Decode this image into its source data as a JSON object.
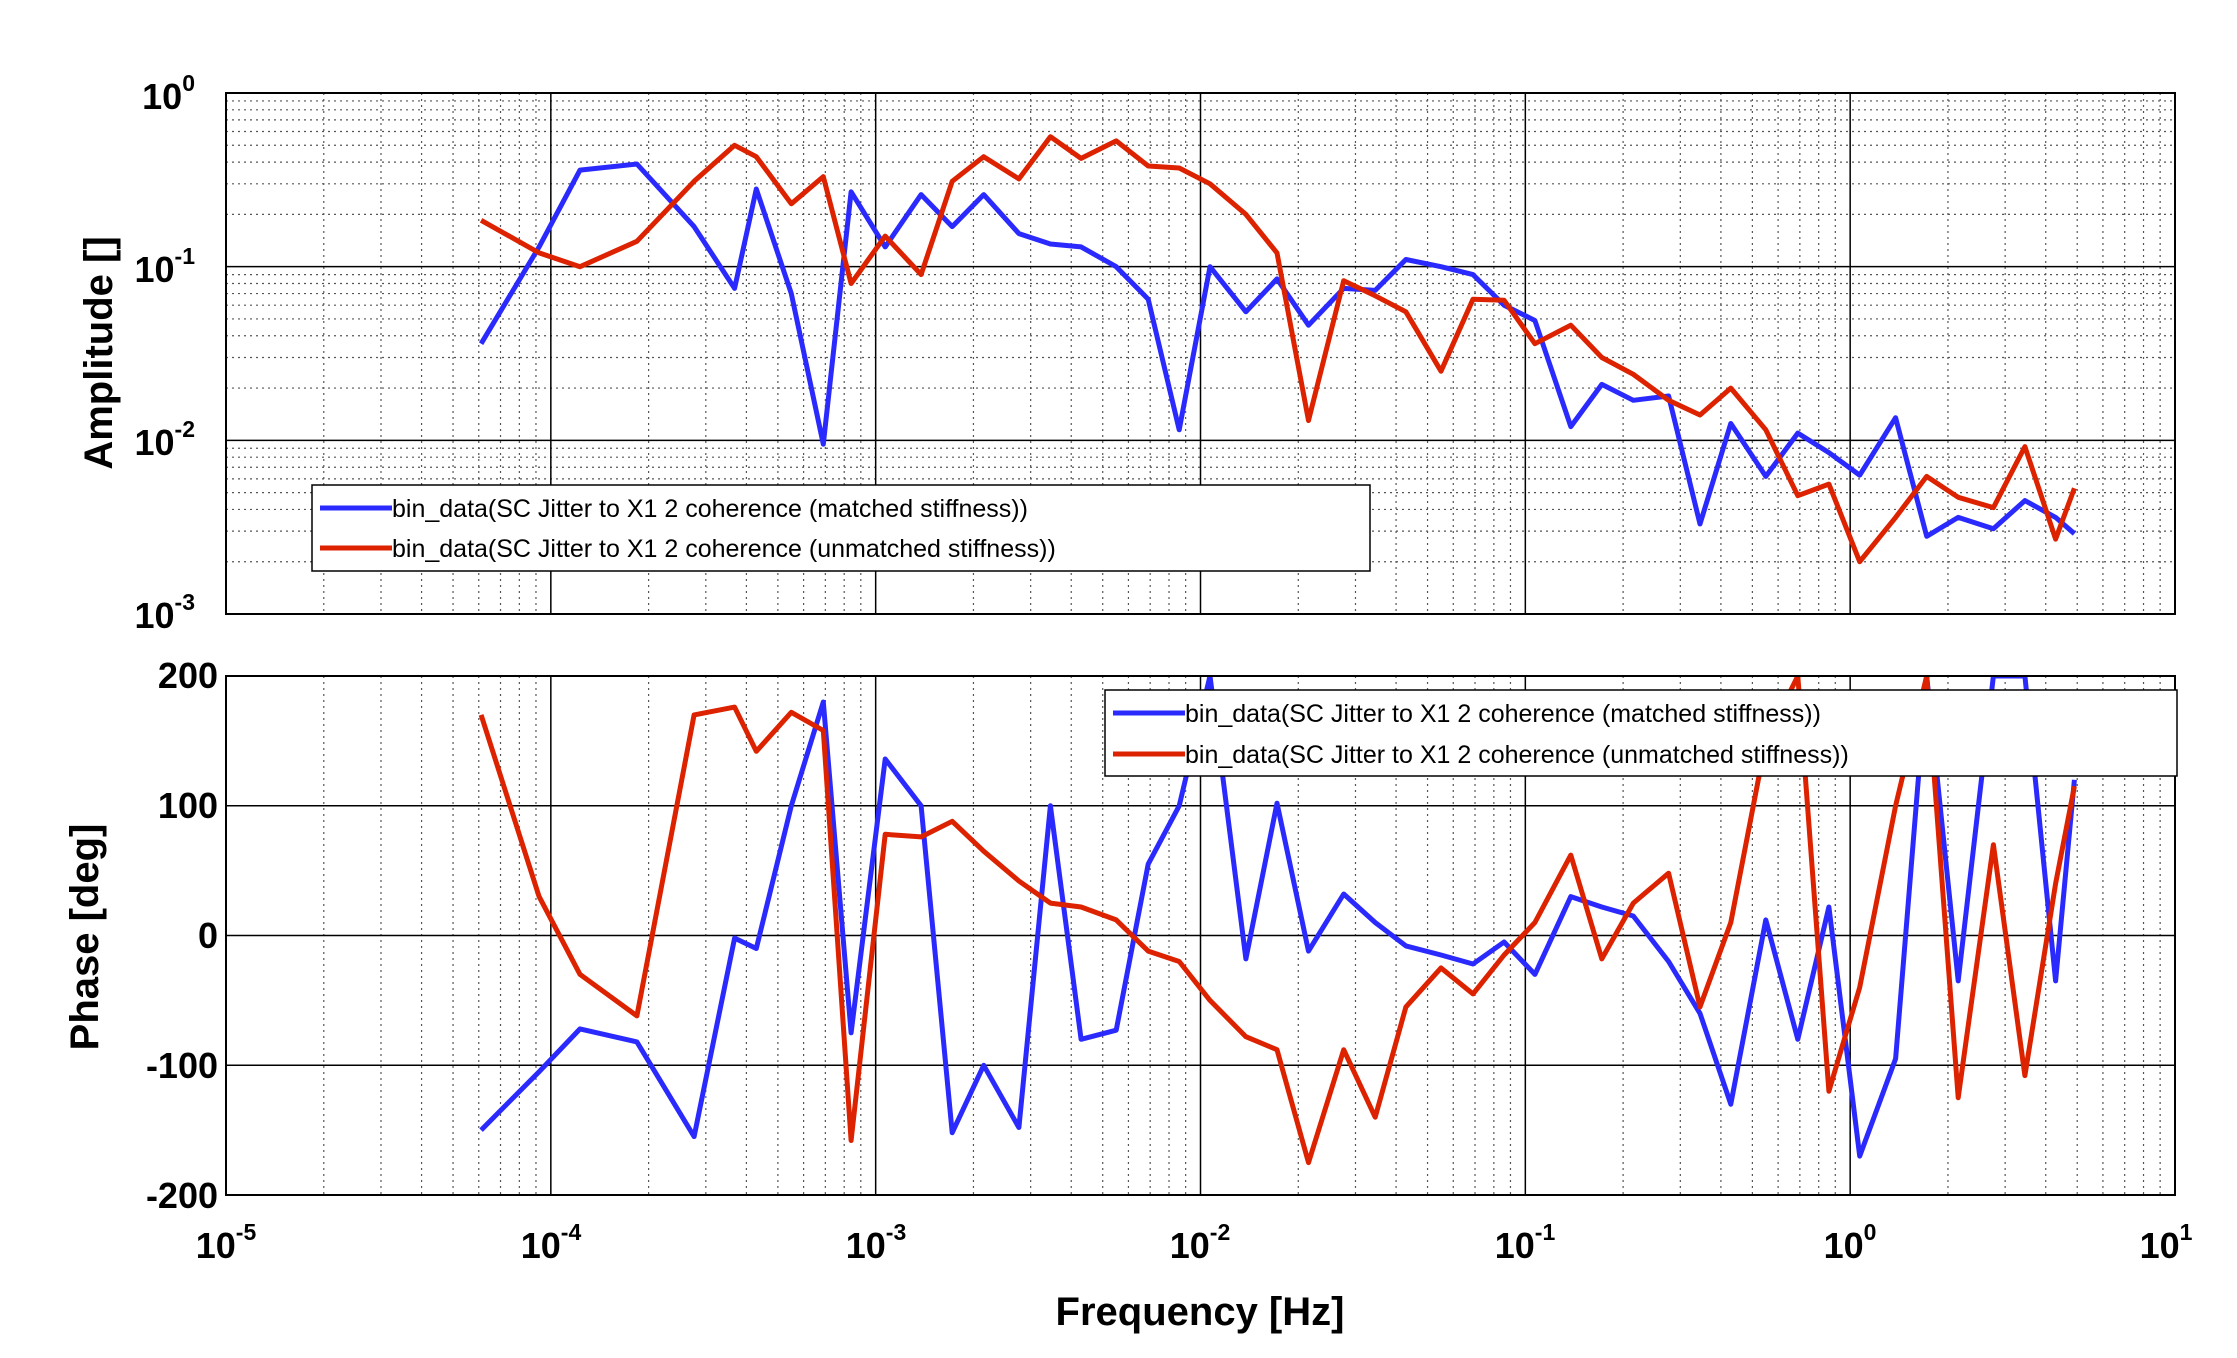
{
  "chart_data": [
    {
      "type": "line",
      "xscale": "log",
      "yscale": "log",
      "xlim": [
        1e-05,
        10
      ],
      "ylim": [
        0.001,
        1
      ],
      "ylabel": "Amplitude  []",
      "grid": true,
      "legend_position": "bottom-left",
      "ytick_labels": [
        {
          "base": "10",
          "exp": "-3"
        },
        {
          "base": "10",
          "exp": "-2"
        },
        {
          "base": "10",
          "exp": "-1"
        },
        {
          "base": "10",
          "exp": "0"
        }
      ],
      "series": [
        {
          "name": "bin_data(SC Jitter to X1 2 coherence (matched stiffness))",
          "color": "#2a2aff",
          "points": [
            [
              6.1e-05,
              0.036
            ],
            [
              9.2e-05,
              0.13
            ],
            [
              0.000123,
              0.36
            ],
            [
              0.000184,
              0.39
            ],
            [
              0.000276,
              0.17
            ],
            [
              0.000368,
              0.075
            ],
            [
              0.000429,
              0.28
            ],
            [
              0.00055,
              0.07
            ],
            [
              0.00069,
              0.0095
            ],
            [
              0.00084,
              0.27
            ],
            [
              0.00107,
              0.13
            ],
            [
              0.00138,
              0.26
            ],
            [
              0.00172,
              0.17
            ],
            [
              0.00215,
              0.26
            ],
            [
              0.00276,
              0.155
            ],
            [
              0.00345,
              0.135
            ],
            [
              0.00429,
              0.13
            ],
            [
              0.0055,
              0.1
            ],
            [
              0.0069,
              0.065
            ],
            [
              0.0086,
              0.0115
            ],
            [
              0.0107,
              0.1
            ],
            [
              0.0138,
              0.055
            ],
            [
              0.0172,
              0.085
            ],
            [
              0.0215,
              0.046
            ],
            [
              0.0276,
              0.075
            ],
            [
              0.0345,
              0.073
            ],
            [
              0.0429,
              0.11
            ],
            [
              0.055,
              0.1
            ],
            [
              0.069,
              0.09
            ],
            [
              0.086,
              0.06
            ],
            [
              0.107,
              0.049
            ],
            [
              0.138,
              0.012
            ],
            [
              0.172,
              0.021
            ],
            [
              0.215,
              0.017
            ],
            [
              0.276,
              0.018
            ],
            [
              0.345,
              0.0033
            ],
            [
              0.429,
              0.0125
            ],
            [
              0.55,
              0.0062
            ],
            [
              0.69,
              0.011
            ],
            [
              0.86,
              0.0085
            ],
            [
              1.07,
              0.0063
            ],
            [
              1.38,
              0.0135
            ],
            [
              1.72,
              0.0028
            ],
            [
              2.15,
              0.0036
            ],
            [
              2.76,
              0.0031
            ],
            [
              3.45,
              0.0045
            ],
            [
              4.29,
              0.0036
            ],
            [
              4.9,
              0.0029
            ]
          ]
        },
        {
          "name": "bin_data(SC Jitter to X1 2 coherence (unmatched stiffness))",
          "color": "#dd2200",
          "points": [
            [
              6.1e-05,
              0.185
            ],
            [
              9.2e-05,
              0.12
            ],
            [
              0.000123,
              0.1
            ],
            [
              0.000184,
              0.14
            ],
            [
              0.000276,
              0.31
            ],
            [
              0.000368,
              0.5
            ],
            [
              0.000429,
              0.43
            ],
            [
              0.00055,
              0.23
            ],
            [
              0.00069,
              0.33
            ],
            [
              0.00084,
              0.08
            ],
            [
              0.00107,
              0.15
            ],
            [
              0.00138,
              0.09
            ],
            [
              0.00172,
              0.31
            ],
            [
              0.00215,
              0.43
            ],
            [
              0.00276,
              0.32
            ],
            [
              0.00345,
              0.56
            ],
            [
              0.00429,
              0.42
            ],
            [
              0.0055,
              0.53
            ],
            [
              0.0069,
              0.38
            ],
            [
              0.0086,
              0.37
            ],
            [
              0.0107,
              0.3
            ],
            [
              0.0138,
              0.2
            ],
            [
              0.0172,
              0.12
            ],
            [
              0.0215,
              0.013
            ],
            [
              0.0276,
              0.083
            ],
            [
              0.0345,
              0.068
            ],
            [
              0.0429,
              0.055
            ],
            [
              0.055,
              0.025
            ],
            [
              0.069,
              0.065
            ],
            [
              0.086,
              0.064
            ],
            [
              0.107,
              0.036
            ],
            [
              0.138,
              0.046
            ],
            [
              0.172,
              0.03
            ],
            [
              0.215,
              0.024
            ],
            [
              0.276,
              0.017
            ],
            [
              0.345,
              0.014
            ],
            [
              0.429,
              0.02
            ],
            [
              0.55,
              0.0115
            ],
            [
              0.69,
              0.0048
            ],
            [
              0.86,
              0.0056
            ],
            [
              1.07,
              0.002
            ],
            [
              1.38,
              0.0036
            ],
            [
              1.72,
              0.0062
            ],
            [
              2.15,
              0.0047
            ],
            [
              2.76,
              0.0041
            ],
            [
              3.45,
              0.0092
            ],
            [
              4.29,
              0.0027
            ],
            [
              4.9,
              0.0053
            ]
          ]
        }
      ]
    },
    {
      "type": "line",
      "xscale": "log",
      "xlim": [
        1e-05,
        10
      ],
      "ylim": [
        -200,
        200
      ],
      "xlabel": "Frequency  [Hz]",
      "ylabel": "Phase  [deg]",
      "grid": true,
      "legend_position": "top-right",
      "yticks": [
        -200,
        -100,
        0,
        100,
        200
      ],
      "ytick_labels": [
        "-200",
        "-100",
        "0",
        "100",
        "200"
      ],
      "xtick_labels": [
        {
          "base": "10",
          "exp": "-5"
        },
        {
          "base": "10",
          "exp": "-4"
        },
        {
          "base": "10",
          "exp": "-3"
        },
        {
          "base": "10",
          "exp": "-2"
        },
        {
          "base": "10",
          "exp": "-1"
        },
        {
          "base": "10",
          "exp": "0"
        },
        {
          "base": "10",
          "exp": "1"
        }
      ],
      "series": [
        {
          "name": "bin_data(SC Jitter to X1 2 coherence (matched stiffness))",
          "color": "#2a2aff",
          "points": [
            [
              6.1e-05,
              -150
            ],
            [
              9.2e-05,
              -105
            ],
            [
              0.000123,
              -72
            ],
            [
              0.000184,
              -82
            ],
            [
              0.000276,
              -155
            ],
            [
              0.000368,
              -2
            ],
            [
              0.000429,
              -10
            ],
            [
              0.00055,
              100
            ],
            [
              0.00069,
              180
            ],
            [
              0.00084,
              -75
            ],
            [
              0.00107,
              136
            ],
            [
              0.00138,
              100
            ],
            [
              0.00172,
              -152
            ],
            [
              0.00215,
              -100
            ],
            [
              0.00276,
              -148
            ],
            [
              0.00345,
              100
            ],
            [
              0.00429,
              -80
            ],
            [
              0.0055,
              -73
            ],
            [
              0.0069,
              55
            ],
            [
              0.0086,
              100
            ],
            [
              0.0107,
              200
            ],
            [
              0.0138,
              -18
            ],
            [
              0.0172,
              102
            ],
            [
              0.0215,
              -12
            ],
            [
              0.0276,
              32
            ],
            [
              0.0345,
              10
            ],
            [
              0.0429,
              -8
            ],
            [
              0.055,
              -15
            ],
            [
              0.069,
              -22
            ],
            [
              0.086,
              -5
            ],
            [
              0.107,
              -30
            ],
            [
              0.138,
              30
            ],
            [
              0.172,
              22
            ],
            [
              0.215,
              15
            ],
            [
              0.276,
              -20
            ],
            [
              0.345,
              -60
            ],
            [
              0.429,
              -130
            ],
            [
              0.55,
              12
            ],
            [
              0.69,
              -80
            ],
            [
              0.86,
              22
            ],
            [
              1.07,
              -170
            ],
            [
              1.38,
              -95
            ],
            [
              1.72,
              200
            ],
            [
              2.15,
              -35
            ],
            [
              2.76,
              200
            ],
            [
              3.45,
              200
            ],
            [
              4.29,
              -35
            ],
            [
              4.9,
              120
            ]
          ]
        },
        {
          "name": "bin_data(SC Jitter to X1 2 coherence (unmatched stiffness))",
          "color": "#dd2200",
          "points": [
            [
              6.1e-05,
              170
            ],
            [
              9.2e-05,
              30
            ],
            [
              0.000123,
              -30
            ],
            [
              0.000184,
              -62
            ],
            [
              0.000276,
              170
            ],
            [
              0.000368,
              176
            ],
            [
              0.000429,
              142
            ],
            [
              0.00055,
              172
            ],
            [
              0.00069,
              158
            ],
            [
              0.00084,
              -158
            ],
            [
              0.00107,
              78
            ],
            [
              0.00138,
              76
            ],
            [
              0.00172,
              88
            ],
            [
              0.00215,
              65
            ],
            [
              0.00276,
              42
            ],
            [
              0.00345,
              25
            ],
            [
              0.00429,
              22
            ],
            [
              0.0055,
              12
            ],
            [
              0.0069,
              -12
            ],
            [
              0.0086,
              -20
            ],
            [
              0.0107,
              -50
            ],
            [
              0.0138,
              -78
            ],
            [
              0.0172,
              -88
            ],
            [
              0.0215,
              -175
            ],
            [
              0.0276,
              -88
            ],
            [
              0.0345,
              -140
            ],
            [
              0.0429,
              -55
            ],
            [
              0.055,
              -25
            ],
            [
              0.069,
              -45
            ],
            [
              0.086,
              -15
            ],
            [
              0.107,
              10
            ],
            [
              0.138,
              62
            ],
            [
              0.172,
              -18
            ],
            [
              0.215,
              25
            ],
            [
              0.276,
              48
            ],
            [
              0.345,
              -55
            ],
            [
              0.429,
              10
            ],
            [
              0.55,
              150
            ],
            [
              0.69,
              200
            ],
            [
              0.86,
              -120
            ],
            [
              1.07,
              -40
            ],
            [
              1.38,
              100
            ],
            [
              1.72,
              200
            ],
            [
              2.15,
              -125
            ],
            [
              2.76,
              70
            ],
            [
              3.45,
              -108
            ],
            [
              4.29,
              40
            ],
            [
              4.9,
              115
            ]
          ]
        }
      ]
    }
  ]
}
